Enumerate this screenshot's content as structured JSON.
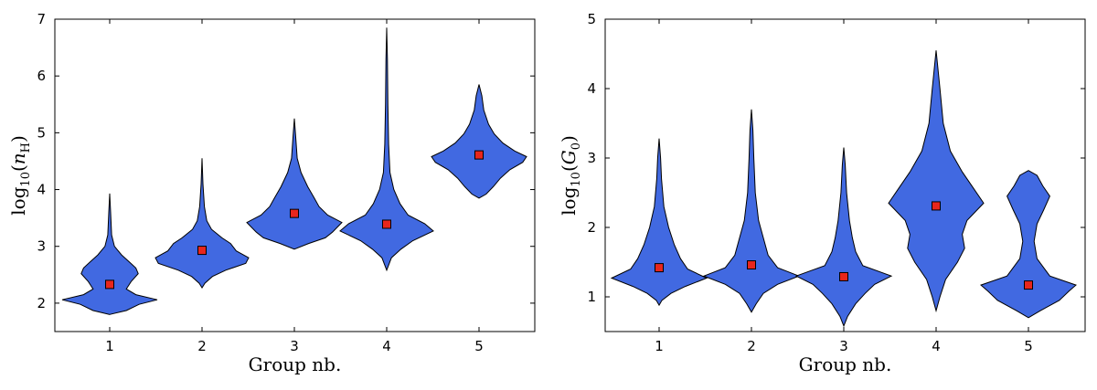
{
  "chart_data": [
    {
      "type": "violin",
      "xlabel": "Group nb.",
      "ylabel": "log10(nH)",
      "ylabel_parts": {
        "pre": "log",
        "sub": "10",
        "var": "n",
        "varsub": "H"
      },
      "categories": [
        "1",
        "2",
        "3",
        "4",
        "5"
      ],
      "ylim": [
        1.5,
        7
      ],
      "yticks": [
        2,
        3,
        4,
        5,
        6,
        7
      ],
      "ytick_labels": [
        "2",
        "3",
        "4",
        "5",
        "6",
        "7"
      ],
      "fill_color": "#4169e1",
      "marker_color": "#e8261c",
      "grid": false,
      "medians": [
        2.33,
        2.93,
        3.58,
        3.39,
        4.61
      ],
      "distributions": [
        {
          "group": "1",
          "profile": [
            [
              1.8,
              0.0
            ],
            [
              1.87,
              0.35
            ],
            [
              1.98,
              0.62
            ],
            [
              2.06,
              1.0
            ],
            [
              2.15,
              0.55
            ],
            [
              2.25,
              0.35
            ],
            [
              2.38,
              0.45
            ],
            [
              2.52,
              0.6
            ],
            [
              2.62,
              0.55
            ],
            [
              2.72,
              0.42
            ],
            [
              2.85,
              0.25
            ],
            [
              3.0,
              0.1
            ],
            [
              3.2,
              0.04
            ],
            [
              3.6,
              0.02
            ],
            [
              3.93,
              0.0
            ]
          ]
        },
        {
          "group": "2",
          "profile": [
            [
              2.27,
              0.0
            ],
            [
              2.35,
              0.06
            ],
            [
              2.47,
              0.22
            ],
            [
              2.58,
              0.5
            ],
            [
              2.7,
              0.92
            ],
            [
              2.8,
              0.98
            ],
            [
              2.92,
              0.72
            ],
            [
              3.05,
              0.6
            ],
            [
              3.15,
              0.42
            ],
            [
              3.3,
              0.2
            ],
            [
              3.45,
              0.1
            ],
            [
              3.7,
              0.05
            ],
            [
              4.1,
              0.02
            ],
            [
              4.55,
              0.0
            ]
          ]
        },
        {
          "group": "3",
          "profile": [
            [
              2.95,
              0.0
            ],
            [
              3.05,
              0.3
            ],
            [
              3.15,
              0.65
            ],
            [
              3.25,
              0.8
            ],
            [
              3.42,
              1.0
            ],
            [
              3.55,
              0.7
            ],
            [
              3.7,
              0.52
            ],
            [
              3.85,
              0.42
            ],
            [
              4.05,
              0.28
            ],
            [
              4.3,
              0.14
            ],
            [
              4.55,
              0.06
            ],
            [
              4.9,
              0.03
            ],
            [
              5.25,
              0.0
            ]
          ]
        },
        {
          "group": "4",
          "profile": [
            [
              2.58,
              0.0
            ],
            [
              2.8,
              0.1
            ],
            [
              2.95,
              0.3
            ],
            [
              3.1,
              0.55
            ],
            [
              3.27,
              0.98
            ],
            [
              3.4,
              0.8
            ],
            [
              3.55,
              0.45
            ],
            [
              3.75,
              0.28
            ],
            [
              4.0,
              0.15
            ],
            [
              4.3,
              0.07
            ],
            [
              4.8,
              0.04
            ],
            [
              5.5,
              0.025
            ],
            [
              6.3,
              0.015
            ],
            [
              6.85,
              0.0
            ]
          ]
        },
        {
          "group": "5",
          "profile": [
            [
              3.85,
              0.0
            ],
            [
              3.92,
              0.15
            ],
            [
              4.05,
              0.3
            ],
            [
              4.2,
              0.45
            ],
            [
              4.35,
              0.65
            ],
            [
              4.48,
              0.92
            ],
            [
              4.58,
              1.0
            ],
            [
              4.68,
              0.75
            ],
            [
              4.82,
              0.5
            ],
            [
              4.98,
              0.32
            ],
            [
              5.15,
              0.2
            ],
            [
              5.4,
              0.1
            ],
            [
              5.65,
              0.06
            ],
            [
              5.85,
              0.0
            ]
          ]
        }
      ]
    },
    {
      "type": "violin",
      "xlabel": "Group nb.",
      "ylabel": "log10(G0)",
      "ylabel_parts": {
        "pre": "log",
        "sub": "10",
        "var": "G",
        "varsub": "0"
      },
      "categories": [
        "1",
        "2",
        "3",
        "4",
        "5"
      ],
      "ylim": [
        0.5,
        5
      ],
      "yticks": [
        1,
        2,
        3,
        4,
        5
      ],
      "ytick_labels": [
        "1",
        "2",
        "3",
        "4",
        "5"
      ],
      "fill_color": "#4169e1",
      "marker_color": "#e8261c",
      "grid": false,
      "medians": [
        1.42,
        1.46,
        1.29,
        2.31,
        1.17
      ],
      "distributions": [
        {
          "group": "1",
          "profile": [
            [
              0.88,
              0.0
            ],
            [
              0.95,
              0.06
            ],
            [
              1.05,
              0.25
            ],
            [
              1.15,
              0.55
            ],
            [
              1.27,
              1.0
            ],
            [
              1.4,
              0.6
            ],
            [
              1.55,
              0.45
            ],
            [
              1.75,
              0.32
            ],
            [
              2.0,
              0.2
            ],
            [
              2.3,
              0.1
            ],
            [
              2.7,
              0.05
            ],
            [
              3.0,
              0.03
            ],
            [
              3.28,
              0.0
            ]
          ]
        },
        {
          "group": "2",
          "profile": [
            [
              0.78,
              0.0
            ],
            [
              0.9,
              0.1
            ],
            [
              1.05,
              0.25
            ],
            [
              1.18,
              0.55
            ],
            [
              1.3,
              1.0
            ],
            [
              1.42,
              0.55
            ],
            [
              1.6,
              0.35
            ],
            [
              1.85,
              0.25
            ],
            [
              2.1,
              0.15
            ],
            [
              2.5,
              0.08
            ],
            [
              3.0,
              0.05
            ],
            [
              3.4,
              0.03
            ],
            [
              3.7,
              0.0
            ]
          ]
        },
        {
          "group": "3",
          "profile": [
            [
              0.58,
              0.0
            ],
            [
              0.72,
              0.08
            ],
            [
              0.9,
              0.25
            ],
            [
              1.05,
              0.45
            ],
            [
              1.18,
              0.65
            ],
            [
              1.3,
              1.0
            ],
            [
              1.45,
              0.4
            ],
            [
              1.65,
              0.25
            ],
            [
              1.85,
              0.18
            ],
            [
              2.1,
              0.12
            ],
            [
              2.5,
              0.06
            ],
            [
              2.9,
              0.03
            ],
            [
              3.15,
              0.0
            ]
          ]
        },
        {
          "group": "4",
          "profile": [
            [
              0.8,
              0.0
            ],
            [
              1.0,
              0.08
            ],
            [
              1.25,
              0.2
            ],
            [
              1.5,
              0.45
            ],
            [
              1.7,
              0.6
            ],
            [
              1.9,
              0.55
            ],
            [
              2.1,
              0.65
            ],
            [
              2.35,
              1.0
            ],
            [
              2.55,
              0.8
            ],
            [
              2.8,
              0.55
            ],
            [
              3.1,
              0.3
            ],
            [
              3.5,
              0.15
            ],
            [
              4.0,
              0.08
            ],
            [
              4.55,
              0.0
            ]
          ]
        },
        {
          "group": "5",
          "profile": [
            [
              0.7,
              0.0
            ],
            [
              0.8,
              0.25
            ],
            [
              0.95,
              0.65
            ],
            [
              1.08,
              0.85
            ],
            [
              1.17,
              1.0
            ],
            [
              1.3,
              0.45
            ],
            [
              1.55,
              0.18
            ],
            [
              1.8,
              0.12
            ],
            [
              2.05,
              0.18
            ],
            [
              2.25,
              0.32
            ],
            [
              2.45,
              0.45
            ],
            [
              2.6,
              0.3
            ],
            [
              2.75,
              0.18
            ],
            [
              2.82,
              0.0
            ]
          ]
        }
      ]
    }
  ]
}
